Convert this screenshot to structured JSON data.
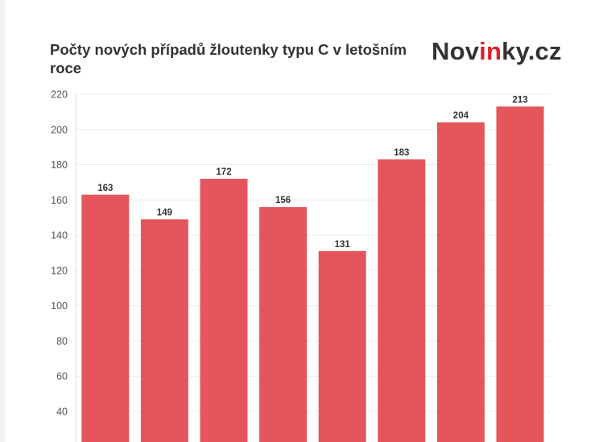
{
  "chart_data": {
    "type": "bar",
    "title": "Počty nových případů žloutenky typu C v letošním roce",
    "xlabel": "",
    "ylabel": "",
    "categories": [
      "",
      "",
      "",
      "",
      "",
      "",
      "",
      ""
    ],
    "values": [
      163,
      149,
      172,
      156,
      131,
      183,
      204,
      213
    ],
    "yticks": [
      "40",
      "60",
      "80",
      "100",
      "120",
      "140",
      "160",
      "180",
      "200",
      "220"
    ],
    "ytick_values": [
      40,
      60,
      80,
      100,
      120,
      140,
      160,
      180,
      200,
      220
    ],
    "ylim_visible": [
      30,
      220
    ],
    "grid": true,
    "bar_color": "#e4555c",
    "data_labels": true
  },
  "logo": {
    "part1": "Nov",
    "part2": "in",
    "part3": "ky.cz",
    "accent_color": "#d8232a"
  }
}
